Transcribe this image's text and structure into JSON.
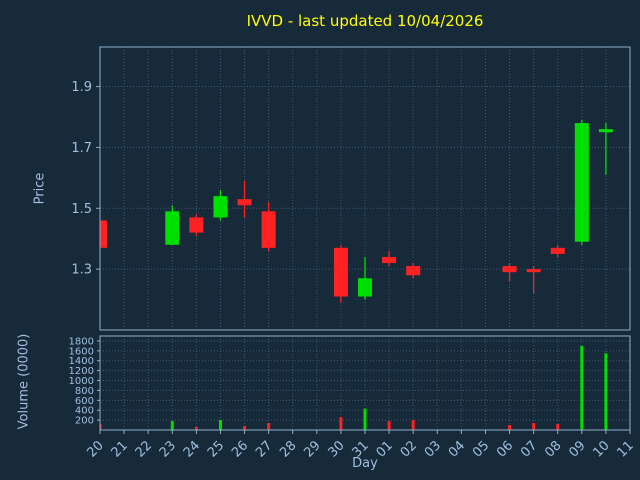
{
  "window": {
    "title": "IVVD - last updated 10/04/2026"
  },
  "colors": {
    "background": "#172a3a",
    "grid": "#3b5a75",
    "spine": "#8fb0cc",
    "tick": "#a0bfdf",
    "title": "#ffff00",
    "up": "#00e000",
    "down": "#ff2222"
  },
  "chart_data": {
    "type": "candlestick",
    "title": "IVVD - last updated 10/04/2026",
    "xlabel": "Day",
    "price_ylabel": "Price",
    "volume_ylabel": "Volume (0000)",
    "grid": true,
    "legend": "none",
    "x_categories": [
      "20",
      "21",
      "22",
      "23",
      "24",
      "25",
      "26",
      "27",
      "28",
      "29",
      "30",
      "31",
      "01",
      "02",
      "03",
      "04",
      "05",
      "06",
      "07",
      "08",
      "09",
      "10",
      "11"
    ],
    "price_ticks": [
      1.3,
      1.5,
      1.7,
      1.9
    ],
    "price_ylim": [
      1.1,
      2.03
    ],
    "volume_ticks": [
      200,
      400,
      600,
      800,
      1000,
      1200,
      1400,
      1600,
      1800
    ],
    "volume_ylim": [
      0,
      1900
    ],
    "up_color": "#00e000",
    "down_color": "#ff2222",
    "candles": [
      {
        "day": "20",
        "open": 1.46,
        "high": 1.46,
        "low": 1.37,
        "close": 1.37,
        "volume": 120
      },
      {
        "day": "23",
        "open": 1.38,
        "high": 1.51,
        "low": 1.38,
        "close": 1.49,
        "volume": 180
      },
      {
        "day": "24",
        "open": 1.47,
        "high": 1.48,
        "low": 1.41,
        "close": 1.42,
        "volume": 60
      },
      {
        "day": "25",
        "open": 1.47,
        "high": 1.56,
        "low": 1.46,
        "close": 1.54,
        "volume": 200
      },
      {
        "day": "26",
        "open": 1.53,
        "high": 1.59,
        "low": 1.47,
        "close": 1.51,
        "volume": 80
      },
      {
        "day": "27",
        "open": 1.49,
        "high": 1.52,
        "low": 1.36,
        "close": 1.37,
        "volume": 140
      },
      {
        "day": "30",
        "open": 1.37,
        "high": 1.38,
        "low": 1.19,
        "close": 1.21,
        "volume": 260
      },
      {
        "day": "31",
        "open": 1.21,
        "high": 1.34,
        "low": 1.2,
        "close": 1.27,
        "volume": 430
      },
      {
        "day": "01",
        "open": 1.34,
        "high": 1.36,
        "low": 1.31,
        "close": 1.32,
        "volume": 180
      },
      {
        "day": "02",
        "open": 1.31,
        "high": 1.32,
        "low": 1.27,
        "close": 1.28,
        "volume": 200
      },
      {
        "day": "06",
        "open": 1.31,
        "high": 1.32,
        "low": 1.26,
        "close": 1.29,
        "volume": 100
      },
      {
        "day": "07",
        "open": 1.3,
        "high": 1.31,
        "low": 1.22,
        "close": 1.29,
        "volume": 140
      },
      {
        "day": "08",
        "open": 1.37,
        "high": 1.38,
        "low": 1.34,
        "close": 1.35,
        "volume": 120
      },
      {
        "day": "09",
        "open": 1.39,
        "high": 1.79,
        "low": 1.38,
        "close": 1.78,
        "volume": 1700
      },
      {
        "day": "10",
        "open": 1.75,
        "high": 1.78,
        "low": 1.61,
        "close": 1.76,
        "volume": 1550
      }
    ]
  }
}
